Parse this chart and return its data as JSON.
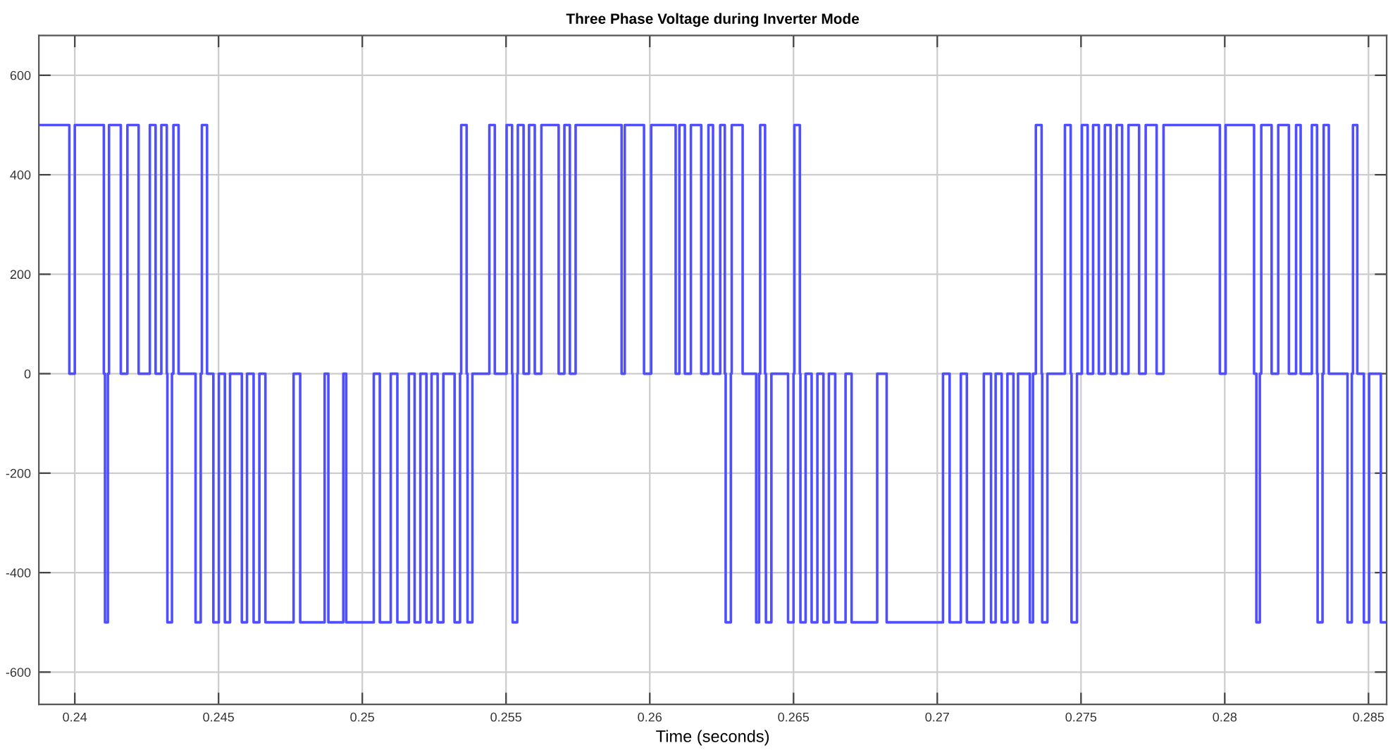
{
  "chart_data": {
    "type": "step",
    "title": "Three Phase Voltage during Inverter Mode",
    "xlabel": "Time (seconds)",
    "xlim": [
      0.23875,
      0.28563
    ],
    "xticks": [
      0.24,
      0.245,
      0.25,
      0.255,
      0.26,
      0.265,
      0.27,
      0.275,
      0.28,
      0.285
    ],
    "ylim": [
      -665,
      680
    ],
    "yticks": [
      -600,
      -400,
      -200,
      0,
      200,
      400,
      600
    ],
    "grid": true,
    "marker": "none",
    "line_style": "solid",
    "series": [
      {
        "color": "#4f4fff",
        "x": [
          0.23875,
          0.23981,
          0.24,
          0.24101,
          0.24105,
          0.24115,
          0.24119,
          0.2416,
          0.24183,
          0.24222,
          0.24261,
          0.24281,
          0.24301,
          0.2432,
          0.24322,
          0.24338,
          0.24343,
          0.24361,
          0.2442,
          0.24438,
          0.24442,
          0.2446,
          0.24482,
          0.24501,
          0.24522,
          0.2454,
          0.24581,
          0.24599,
          0.24622,
          0.24642,
          0.24663,
          0.24761,
          0.24784,
          0.24869,
          0.24882,
          0.24934,
          0.24944,
          0.2504,
          0.25061,
          0.25099,
          0.25122,
          0.25162,
          0.25182,
          0.25202,
          0.25223,
          0.25241,
          0.25262,
          0.25282,
          0.25321,
          0.2534,
          0.25344,
          0.25363,
          0.25366,
          0.25383,
          0.25442,
          0.25461,
          0.25502,
          0.25521,
          0.25523,
          0.25539,
          0.25541,
          0.25561,
          0.2558,
          0.256,
          0.25623,
          0.25683,
          0.25703,
          0.25722,
          0.25742,
          0.25902,
          0.25913,
          0.2598,
          0.26005,
          0.2609,
          0.26103,
          0.26122,
          0.26143,
          0.26179,
          0.26204,
          0.2622,
          0.26245,
          0.26261,
          0.26264,
          0.26282,
          0.26285,
          0.26323,
          0.2637,
          0.2638,
          0.26384,
          0.26401,
          0.26404,
          0.26423,
          0.26481,
          0.265,
          0.26503,
          0.26522,
          0.26524,
          0.26542,
          0.26563,
          0.26583,
          0.26604,
          0.26623,
          0.26645,
          0.26681,
          0.26702,
          0.26791,
          0.26824,
          0.2702,
          0.27043,
          0.27082,
          0.27103,
          0.27162,
          0.27187,
          0.27203,
          0.27224,
          0.27244,
          0.27265,
          0.27281,
          0.27322,
          0.27333,
          0.27343,
          0.27363,
          0.27365,
          0.27383,
          0.27444,
          0.27464,
          0.27467,
          0.27486,
          0.27503,
          0.27523,
          0.27542,
          0.27562,
          0.27583,
          0.27603,
          0.27624,
          0.27643,
          0.27665,
          0.27702,
          0.27725,
          0.27763,
          0.27787,
          0.27983,
          0.28003,
          0.28102,
          0.2811,
          0.28122,
          0.28127,
          0.28163,
          0.28186,
          0.28223,
          0.28248,
          0.28264,
          0.28303,
          0.28321,
          0.28323,
          0.2834,
          0.28344,
          0.28362,
          0.28427,
          0.28442,
          0.28446,
          0.28461,
          0.28484,
          0.28502,
          0.28543,
          0.28563
        ],
        "values": [
          500,
          0,
          500,
          0,
          -500,
          0,
          500,
          0,
          500,
          0,
          500,
          0,
          500,
          0,
          -500,
          0,
          500,
          0,
          -500,
          0,
          500,
          0,
          -500,
          0,
          -500,
          0,
          -500,
          0,
          -500,
          0,
          -500,
          0,
          -500,
          0,
          -500,
          0,
          -500,
          0,
          -500,
          0,
          -500,
          0,
          -500,
          0,
          -500,
          0,
          -500,
          0,
          -500,
          0,
          500,
          0,
          -500,
          0,
          500,
          0,
          500,
          0,
          -500,
          0,
          500,
          0,
          500,
          0,
          500,
          0,
          500,
          0,
          500,
          0,
          500,
          0,
          500,
          0,
          500,
          0,
          500,
          0,
          500,
          0,
          500,
          0,
          -500,
          0,
          500,
          0,
          -500,
          0,
          500,
          0,
          -500,
          0,
          -500,
          0,
          500,
          0,
          -500,
          0,
          -500,
          0,
          -500,
          0,
          -500,
          0,
          -500,
          0,
          -500,
          0,
          -500,
          0,
          -500,
          0,
          -500,
          0,
          -500,
          0,
          -500,
          0,
          -500,
          0,
          500,
          0,
          -500,
          0,
          500,
          0,
          -500,
          0,
          500,
          0,
          500,
          0,
          500,
          0,
          500,
          0,
          500,
          0,
          500,
          0,
          500,
          0,
          500,
          0,
          -500,
          0,
          500,
          0,
          500,
          0,
          500,
          0,
          500,
          0,
          -500,
          0,
          500,
          0,
          -500,
          0,
          500,
          0,
          -500,
          0,
          -500,
          -500
        ]
      }
    ]
  }
}
